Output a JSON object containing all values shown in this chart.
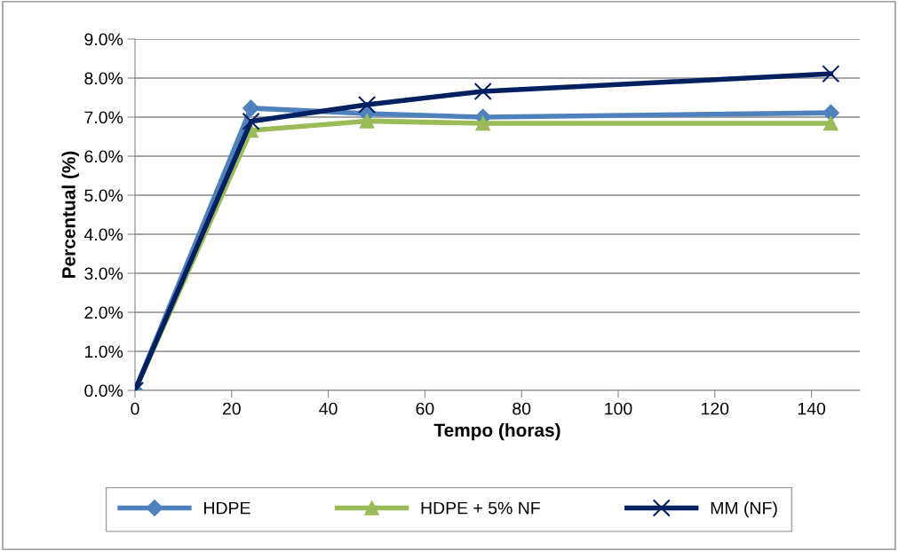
{
  "chart_data": {
    "type": "line",
    "xlabel": "Tempo (horas)",
    "ylabel": "Percentual (%)",
    "x": [
      0,
      24,
      48,
      72,
      144
    ],
    "series": [
      {
        "name": "HDPE",
        "color": "#4f81bd",
        "marker": "diamond",
        "values": [
          0,
          7.23,
          7.09,
          7.0,
          7.11
        ]
      },
      {
        "name": "HDPE + 5% NF",
        "color": "#9bbb59",
        "marker": "triangle",
        "values": [
          0,
          6.66,
          6.9,
          6.84,
          6.84
        ]
      },
      {
        "name": "MM (NF)",
        "color": "#002060",
        "marker": "cross",
        "values": [
          0,
          6.89,
          7.32,
          7.66,
          8.11
        ]
      }
    ],
    "xlim": [
      0,
      150
    ],
    "xticks": [
      0,
      20,
      40,
      60,
      80,
      100,
      120,
      140
    ],
    "ylim": [
      0,
      9
    ],
    "yticks": [
      {
        "value": 0,
        "label": "0.0%"
      },
      {
        "value": 1,
        "label": "1.0%"
      },
      {
        "value": 2,
        "label": "2.0%"
      },
      {
        "value": 3,
        "label": "3.0%"
      },
      {
        "value": 4,
        "label": "4.0%"
      },
      {
        "value": 5,
        "label": "5.0%"
      },
      {
        "value": 6,
        "label": "6.0%"
      },
      {
        "value": 7,
        "label": "7.0%"
      },
      {
        "value": 8,
        "label": "8.0%"
      },
      {
        "value": 9,
        "label": "9.0%"
      }
    ],
    "grid": "y",
    "legend": "bottom",
    "line_style": "solid"
  }
}
